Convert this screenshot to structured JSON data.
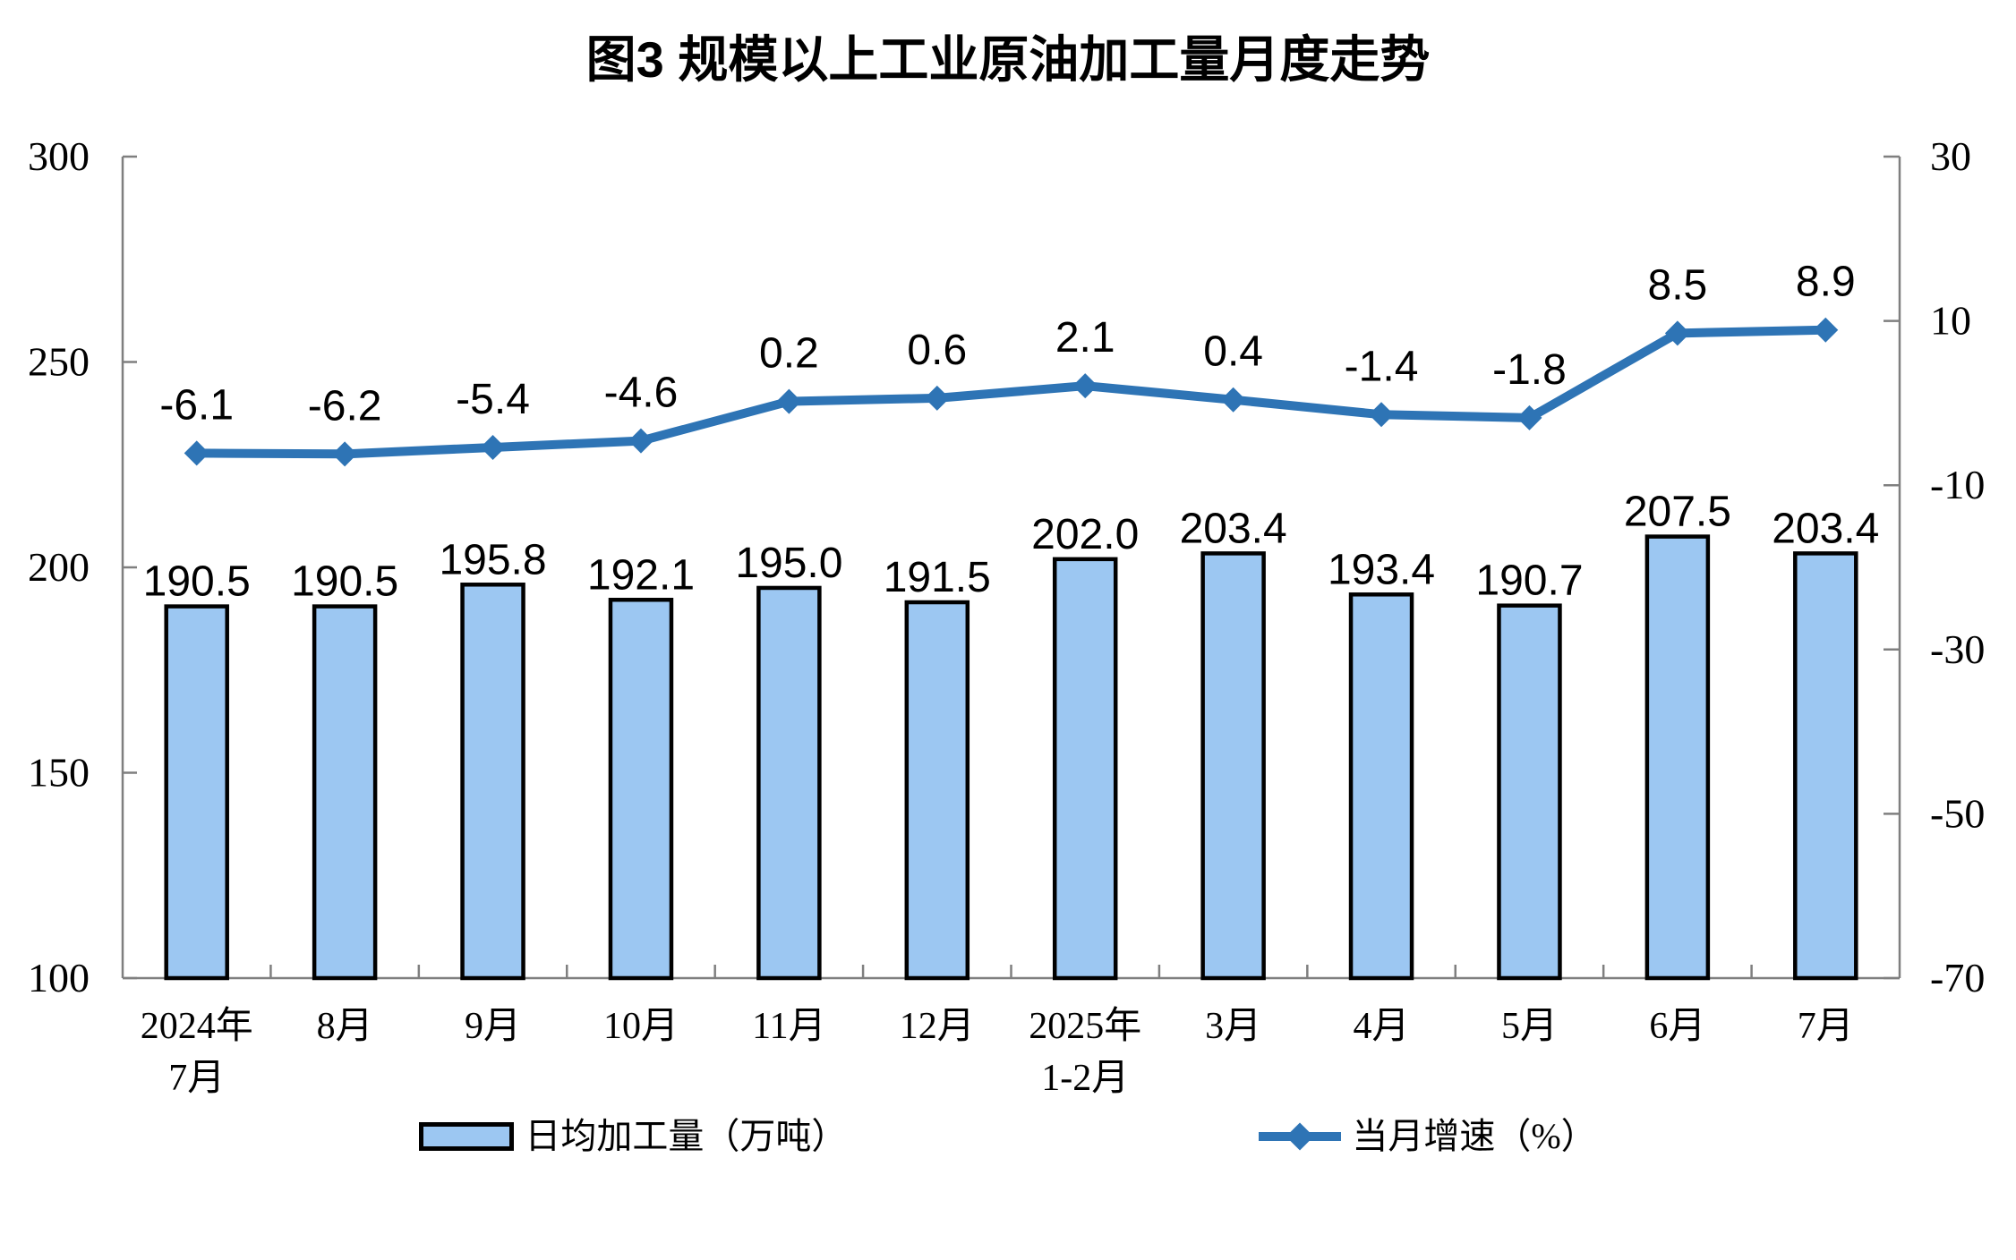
{
  "title": "图3  规模以上工业原油加工量月度走势",
  "legend": {
    "bar_label": "日均加工量（万吨）",
    "line_label": "当月增速（%）"
  },
  "colors": {
    "background": "#FFFFFF",
    "bar_fill": "#9CC7F2",
    "bar_border": "#000000",
    "line": "#2E74B5",
    "axis": "#7F7F7F",
    "text": "#000000"
  },
  "chart_data": {
    "type": "bar",
    "subtype": "combo-bar-line",
    "title": "图3  规模以上工业原油加工量月度走势",
    "categories": [
      [
        "2024年",
        "7月"
      ],
      [
        "8月"
      ],
      [
        "9月"
      ],
      [
        "10月"
      ],
      [
        "11月"
      ],
      [
        "12月"
      ],
      [
        "2025年",
        "1-2月"
      ],
      [
        "3月"
      ],
      [
        "4月"
      ],
      [
        "5月"
      ],
      [
        "6月"
      ],
      [
        "7月"
      ]
    ],
    "series": [
      {
        "name": "日均加工量（万吨）",
        "type": "bar",
        "axis": "left",
        "values": [
          190.5,
          190.5,
          195.8,
          192.1,
          195.0,
          191.5,
          202.0,
          203.4,
          193.4,
          190.7,
          207.5,
          203.4
        ]
      },
      {
        "name": "当月增速（%）",
        "type": "line",
        "axis": "right",
        "marker": "diamond",
        "values": [
          -6.1,
          -6.2,
          -5.4,
          -4.6,
          0.2,
          0.6,
          2.1,
          0.4,
          -1.4,
          -1.8,
          8.5,
          8.9
        ]
      }
    ],
    "left_axis": {
      "min": 100,
      "max": 300,
      "ticks": [
        300,
        250,
        200,
        150,
        100
      ]
    },
    "right_axis": {
      "min": -70,
      "max": 30,
      "ticks": [
        30,
        10,
        -10,
        -30,
        -50,
        -70
      ]
    },
    "grid": false,
    "legend_position": "bottom",
    "data_labels": true
  }
}
